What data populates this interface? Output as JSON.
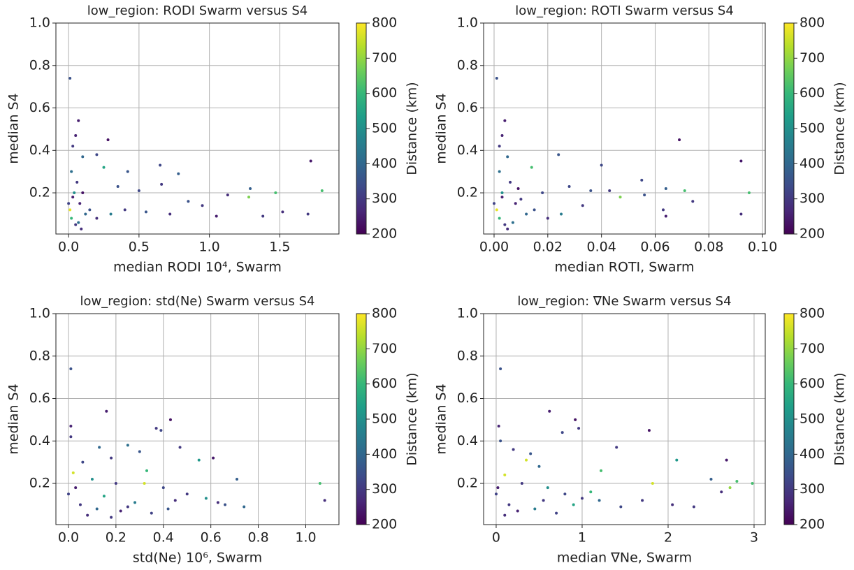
{
  "chart_data": [
    {
      "type": "scatter",
      "title": "low_region: RODI Swarm versus S4",
      "xlabel": "median RODI 10⁴, Swarm",
      "ylabel": "median S4",
      "colorbar_label": "Distance (km)",
      "colormap": "viridis",
      "grid": true,
      "xlim": [
        -0.09,
        1.92
      ],
      "ylim": [
        0.006,
        1.0
      ],
      "clim": [
        200,
        800
      ],
      "xticks": [
        {
          "value": 0,
          "label": "0.0"
        },
        0.5,
        {
          "value": 1,
          "label": "1.0"
        },
        1.5
      ],
      "yticks": [
        0.2,
        0.4,
        0.6,
        0.8,
        {
          "value": 1,
          "label": "1.0"
        }
      ],
      "cticks": [
        200,
        300,
        400,
        500,
        600,
        700,
        800
      ],
      "x": [
        0.01,
        0.07,
        0.28,
        1.72,
        0.65,
        0.42,
        0.25,
        0.78,
        1.29,
        1.8,
        1.47,
        1.28,
        1.13,
        0.95,
        1.05,
        1.52,
        1.7,
        0.5,
        0.66,
        0.35,
        0.2,
        0.05,
        0.03,
        0.1,
        0.02,
        0.06,
        0.04,
        0.08,
        0.12,
        0.02,
        0.05,
        0.15,
        0.2,
        0.3,
        0.4,
        0.55,
        0.01,
        0.03,
        0.07,
        0.1,
        0.0,
        0.09,
        1.38,
        0.85,
        0.72
      ],
      "y": [
        0.74,
        0.54,
        0.45,
        0.35,
        0.33,
        0.3,
        0.32,
        0.29,
        0.22,
        0.21,
        0.2,
        0.18,
        0.19,
        0.14,
        0.09,
        0.11,
        0.1,
        0.21,
        0.24,
        0.23,
        0.38,
        0.47,
        0.42,
        0.37,
        0.3,
        0.25,
        0.2,
        0.15,
        0.1,
        0.08,
        0.05,
        0.12,
        0.08,
        0.1,
        0.12,
        0.11,
        0.12,
        0.18,
        0.06,
        0.2,
        0.15,
        0.03,
        0.09,
        0.16,
        0.1
      ],
      "c": [
        350,
        250,
        230,
        240,
        330,
        360,
        550,
        380,
        380,
        620,
        620,
        680,
        280,
        300,
        250,
        280,
        300,
        330,
        300,
        350,
        330,
        260,
        300,
        400,
        420,
        300,
        500,
        260,
        400,
        600,
        300,
        350,
        280,
        450,
        300,
        360,
        780,
        250,
        420,
        230,
        320,
        280,
        300,
        350,
        280
      ]
    },
    {
      "type": "scatter",
      "title": "low_region: ROTI Swarm versus S4",
      "xlabel": "median ROTI, Swarm",
      "ylabel": "median S4",
      "colorbar_label": "Distance (km)",
      "colormap": "viridis",
      "grid": true,
      "xlim": [
        -0.0039,
        0.101
      ],
      "ylim": [
        0.006,
        1.0
      ],
      "clim": [
        200,
        800
      ],
      "xticks": [
        {
          "value": 0,
          "label": "0.00"
        },
        {
          "value": 0.02,
          "label": "0.02"
        },
        {
          "value": 0.04,
          "label": "0.04"
        },
        {
          "value": 0.06,
          "label": "0.06"
        },
        {
          "value": 0.08,
          "label": "0.08"
        },
        {
          "value": 0.1,
          "label": "0.10"
        }
      ],
      "yticks": [
        0.2,
        0.4,
        0.6,
        0.8,
        {
          "value": 1,
          "label": "1.0"
        }
      ],
      "cticks": [
        200,
        300,
        400,
        500,
        600,
        700,
        800
      ],
      "x": [
        0.001,
        0.004,
        0.069,
        0.092,
        0.04,
        0.024,
        0.014,
        0.064,
        0.071,
        0.095,
        0.047,
        0.055,
        0.063,
        0.064,
        0.092,
        0.074,
        0.033,
        0.028,
        0.036,
        0.018,
        0.003,
        0.002,
        0.005,
        0.002,
        0.006,
        0.003,
        0.008,
        0.012,
        0.002,
        0.004,
        0.015,
        0.02,
        0.025,
        0.01,
        0.001,
        0.003,
        0.007,
        0.009,
        0.0,
        0.005,
        0.043,
        0.056
      ],
      "y": [
        0.74,
        0.54,
        0.45,
        0.35,
        0.33,
        0.38,
        0.32,
        0.22,
        0.21,
        0.2,
        0.18,
        0.26,
        0.12,
        0.09,
        0.1,
        0.16,
        0.14,
        0.23,
        0.21,
        0.2,
        0.47,
        0.42,
        0.37,
        0.3,
        0.25,
        0.2,
        0.15,
        0.1,
        0.08,
        0.05,
        0.12,
        0.08,
        0.1,
        0.17,
        0.12,
        0.18,
        0.06,
        0.22,
        0.15,
        0.03,
        0.21,
        0.19
      ],
      "c": [
        350,
        250,
        230,
        240,
        330,
        360,
        620,
        380,
        620,
        620,
        680,
        330,
        300,
        250,
        280,
        300,
        300,
        330,
        350,
        330,
        260,
        300,
        400,
        420,
        300,
        500,
        260,
        400,
        600,
        300,
        350,
        280,
        450,
        300,
        780,
        250,
        420,
        230,
        320,
        280,
        300,
        350
      ]
    },
    {
      "type": "scatter",
      "title": "low_region: std(Ne) Swarm versus S4",
      "xlabel": "std(Ne) 10⁶, Swarm",
      "ylabel": "median S4",
      "colorbar_label": "Distance (km)",
      "colormap": "viridis",
      "grid": true,
      "xlim": [
        -0.053,
        1.14
      ],
      "ylim": [
        0.006,
        1.0
      ],
      "clim": [
        200,
        800
      ],
      "xticks": [
        {
          "value": 0,
          "label": "0.0"
        },
        0.2,
        0.4,
        0.6,
        0.8,
        {
          "value": 1,
          "label": "1.0"
        }
      ],
      "yticks": [
        0.2,
        0.4,
        0.6,
        0.8,
        {
          "value": 1,
          "label": "1.0"
        }
      ],
      "cticks": [
        200,
        300,
        400,
        500,
        600,
        700,
        800
      ],
      "x": [
        0.01,
        0.16,
        0.43,
        0.37,
        0.39,
        0.47,
        0.3,
        0.61,
        0.55,
        0.33,
        0.71,
        1.06,
        1.08,
        0.01,
        0.01,
        0.13,
        0.25,
        0.18,
        0.06,
        0.02,
        0.1,
        0.2,
        0.32,
        0.4,
        0.5,
        0.58,
        0.63,
        0.74,
        0.66,
        0.45,
        0.05,
        0.12,
        0.22,
        0.28,
        0.35,
        0.15,
        0.08,
        0.0,
        0.03,
        0.25,
        0.18,
        0.42
      ],
      "y": [
        0.74,
        0.54,
        0.5,
        0.46,
        0.45,
        0.37,
        0.35,
        0.32,
        0.31,
        0.26,
        0.22,
        0.2,
        0.12,
        0.47,
        0.42,
        0.37,
        0.38,
        0.32,
        0.3,
        0.25,
        0.22,
        0.2,
        0.2,
        0.18,
        0.15,
        0.13,
        0.11,
        0.09,
        0.1,
        0.12,
        0.1,
        0.08,
        0.07,
        0.11,
        0.06,
        0.14,
        0.05,
        0.15,
        0.18,
        0.09,
        0.04,
        0.08
      ],
      "c": [
        350,
        250,
        230,
        300,
        330,
        300,
        360,
        240,
        520,
        600,
        380,
        620,
        280,
        260,
        300,
        400,
        420,
        300,
        330,
        760,
        500,
        300,
        760,
        330,
        300,
        500,
        280,
        400,
        350,
        280,
        300,
        400,
        260,
        450,
        320,
        550,
        280,
        320,
        250,
        300,
        300,
        360
      ]
    },
    {
      "type": "scatter",
      "title": "low_region: ∇Ne Swarm versus S4",
      "xlabel": "median ∇Ne, Swarm",
      "ylabel": "median S4",
      "colorbar_label": "Distance (km)",
      "colormap": "viridis",
      "grid": true,
      "xlim": [
        -0.146,
        3.13
      ],
      "ylim": [
        0.006,
        1.0
      ],
      "clim": [
        200,
        800
      ],
      "xticks": [
        0,
        1,
        2,
        3
      ],
      "yticks": [
        0.2,
        0.4,
        0.6,
        0.8,
        {
          "value": 1,
          "label": "1.0"
        }
      ],
      "cticks": [
        200,
        300,
        400,
        500,
        600,
        700,
        800
      ],
      "x": [
        0.05,
        0.62,
        0.92,
        0.96,
        1.78,
        0.77,
        1.4,
        0.4,
        2.68,
        2.1,
        1.22,
        2.5,
        2.98,
        1.82,
        2.62,
        2.72,
        2.8,
        2.3,
        2.05,
        0.03,
        0.05,
        0.2,
        0.35,
        0.5,
        0.1,
        0.3,
        0.6,
        0.8,
        1.0,
        1.2,
        1.45,
        1.7,
        0.15,
        0.25,
        0.45,
        0.7,
        0.9,
        0.1,
        0.0,
        0.02,
        0.55,
        1.1
      ],
      "y": [
        0.74,
        0.54,
        0.5,
        0.46,
        0.45,
        0.44,
        0.37,
        0.34,
        0.31,
        0.31,
        0.26,
        0.22,
        0.2,
        0.2,
        0.16,
        0.18,
        0.21,
        0.09,
        0.1,
        0.47,
        0.4,
        0.36,
        0.31,
        0.28,
        0.24,
        0.2,
        0.18,
        0.15,
        0.13,
        0.12,
        0.09,
        0.12,
        0.1,
        0.07,
        0.08,
        0.06,
        0.1,
        0.05,
        0.15,
        0.18,
        0.12,
        0.16
      ],
      "c": [
        350,
        250,
        230,
        300,
        230,
        330,
        300,
        360,
        240,
        520,
        620,
        380,
        620,
        760,
        280,
        700,
        620,
        300,
        280,
        260,
        350,
        300,
        760,
        400,
        760,
        300,
        500,
        330,
        300,
        400,
        330,
        300,
        300,
        260,
        450,
        320,
        550,
        280,
        320,
        250,
        300,
        600
      ]
    }
  ]
}
